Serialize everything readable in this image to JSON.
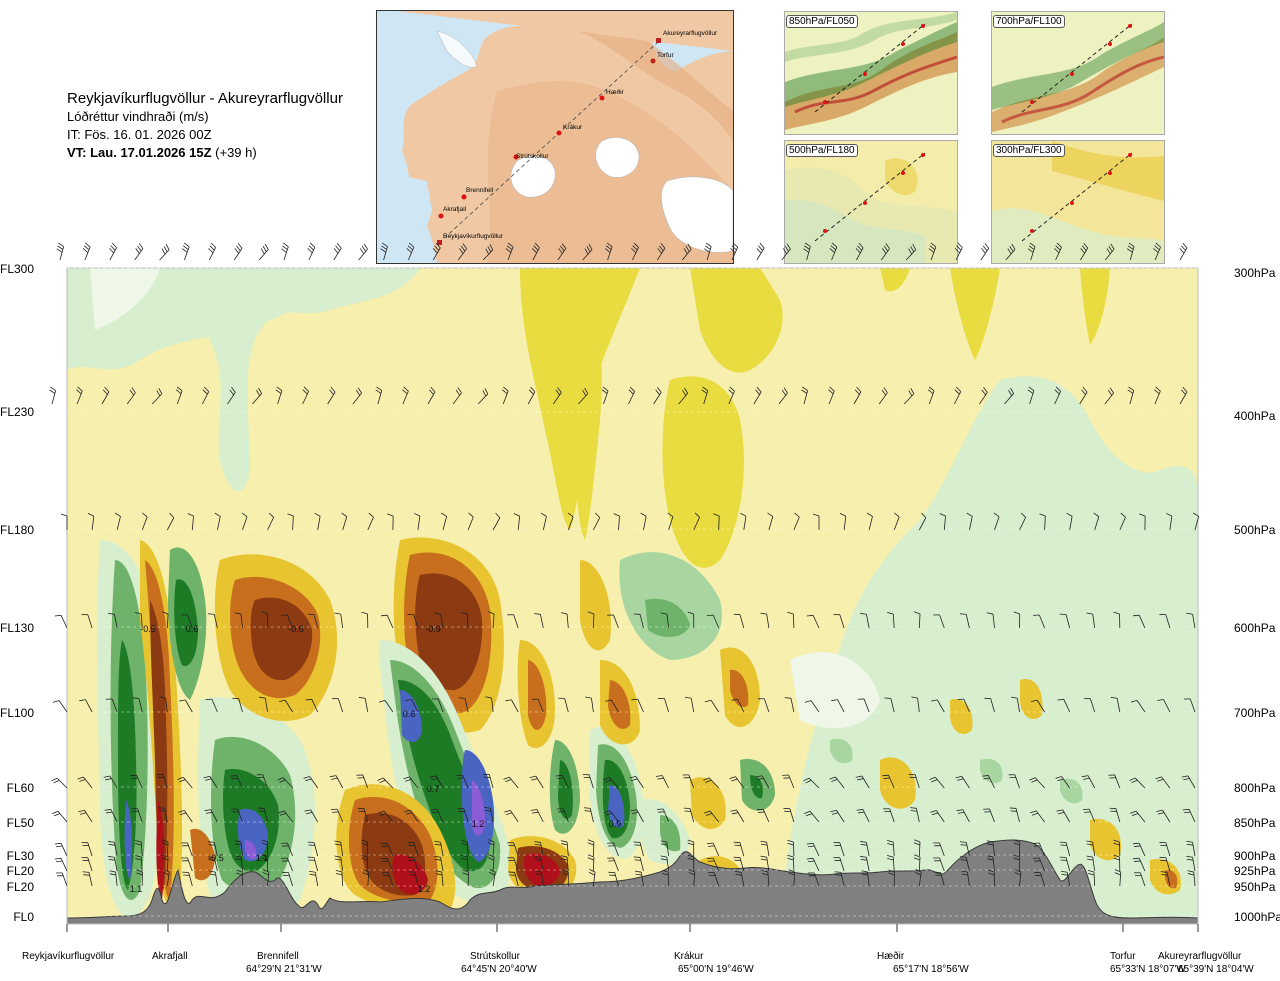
{
  "header": {
    "route": "Reykjavíkurflugvöllur - Akureyrarflugvöllur",
    "variable": "Lóðréttur vindhraði (m/s)",
    "it": "IT: Fös. 16. 01. 2026 00Z",
    "vt_bold": "VT: Lau. 17.01.2026 15Z",
    "vt_offset": " (+39 h)"
  },
  "route_map": {
    "places": [
      "Akureyrarflugvöllur",
      "Torfur",
      "Hæðir",
      "Krákur",
      "Strútskollur",
      "Brennifell",
      "Akrafjall",
      "Reykjavíkurflugvöllur"
    ]
  },
  "mini_maps": [
    {
      "label": "850hPa/FL050"
    },
    {
      "label": "700hPa/FL100"
    },
    {
      "label": "500hPa/FL180"
    },
    {
      "label": "300hPa/FL300"
    }
  ],
  "levels": [
    {
      "fl": "FL300",
      "hpa": "300hPa",
      "y": 0
    },
    {
      "fl": "FL230",
      "hpa": "400hPa",
      "y": 1
    },
    {
      "fl": "FL180",
      "hpa": "500hPa",
      "y": 2
    },
    {
      "fl": "FL130",
      "hpa": "600hPa",
      "y": 3
    },
    {
      "fl": "FL100",
      "hpa": "700hPa",
      "y": 4
    },
    {
      "fl": "FL60",
      "hpa": "800hPa",
      "y": 5
    },
    {
      "fl": "FL50",
      "hpa": "850hPa",
      "y": 6
    },
    {
      "fl": "FL30",
      "hpa": "900hPa",
      "y": 7
    },
    {
      "fl": "FL20",
      "hpa": "925hPa",
      "y": 8
    },
    {
      "fl": "FL20",
      "hpa": "950hPa",
      "y": 9
    },
    {
      "fl": "FL0",
      "hpa": "1000hPa",
      "y": 10
    }
  ],
  "locations": [
    {
      "name": "Reykjavíkurflugvöllur",
      "coord": ""
    },
    {
      "name": "Akrafjall",
      "coord": ""
    },
    {
      "name": "Brennifell",
      "coord": "64°29'N 21°31'W"
    },
    {
      "name": "Strútskollur",
      "coord": "64°45'N 20°40'W"
    },
    {
      "name": "Krákur",
      "coord": "65°00'N 19°46'W"
    },
    {
      "name": "Hæðir",
      "coord": "65°17'N 18°56'W"
    },
    {
      "name": "Torfur",
      "coord": "65°33'N 18°07'W"
    },
    {
      "name": "Akureyrarflugvöllur",
      "coord": "65°39'N 18°04'W"
    }
  ],
  "chart_data": {
    "type": "heatmap",
    "title": "Lóðréttur vindhraði (m/s)",
    "x_points": [
      "Reykjavíkurflugvöllur",
      "Akrafjall",
      "Brennifell",
      "Strútskollur",
      "Krákur",
      "Hæðir",
      "Torfur",
      "Akureyrarflugvöllur"
    ],
    "y_levels_hpa": [
      1000,
      950,
      925,
      900,
      850,
      800,
      700,
      600,
      500,
      400,
      300
    ],
    "annotations": [
      {
        "label": "-0.5",
        "x": "Akrafjall",
        "level_hpa": 600
      },
      {
        "label": "0.6",
        "x": "Akrafjall",
        "level_hpa": 600
      },
      {
        "label": "-0.6",
        "x": "Brennifell",
        "level_hpa": 600
      },
      {
        "label": "-0.9",
        "x": "Strútskollur",
        "level_hpa": 600
      },
      {
        "label": "0.6",
        "x": "Strútskollur",
        "level_hpa": 700
      },
      {
        "label": "0.7",
        "x": "Strútskollur",
        "level_hpa": 800
      },
      {
        "label": "1.2",
        "x": "Strútskollur",
        "level_hpa": 850
      },
      {
        "label": "0.9",
        "x": "Krákur",
        "level_hpa": 850
      },
      {
        "label": "-0.5",
        "x": "Brennifell",
        "level_hpa": 900
      },
      {
        "label": "1.1",
        "x": "Brennifell",
        "level_hpa": 900
      },
      {
        "label": "1.1",
        "x": "Reykjavíkurflugvöllur",
        "level_hpa": 950
      },
      {
        "label": "1.2",
        "x": "Strútskollur",
        "level_hpa": 950
      }
    ],
    "colors": {
      "strong_down": "#8b3a12",
      "down": "#c86f1e",
      "weak_down": "#e8c530",
      "near_zero": "#f6efae",
      "weak_up": "#d7eecf",
      "up": "#6fb36a",
      "strong_up": "#1d7a25",
      "very_strong_up": "#4a64c2",
      "extreme_up": "#8b5cd6",
      "extreme_down": "#b0101a",
      "terrain": "#808080"
    }
  }
}
